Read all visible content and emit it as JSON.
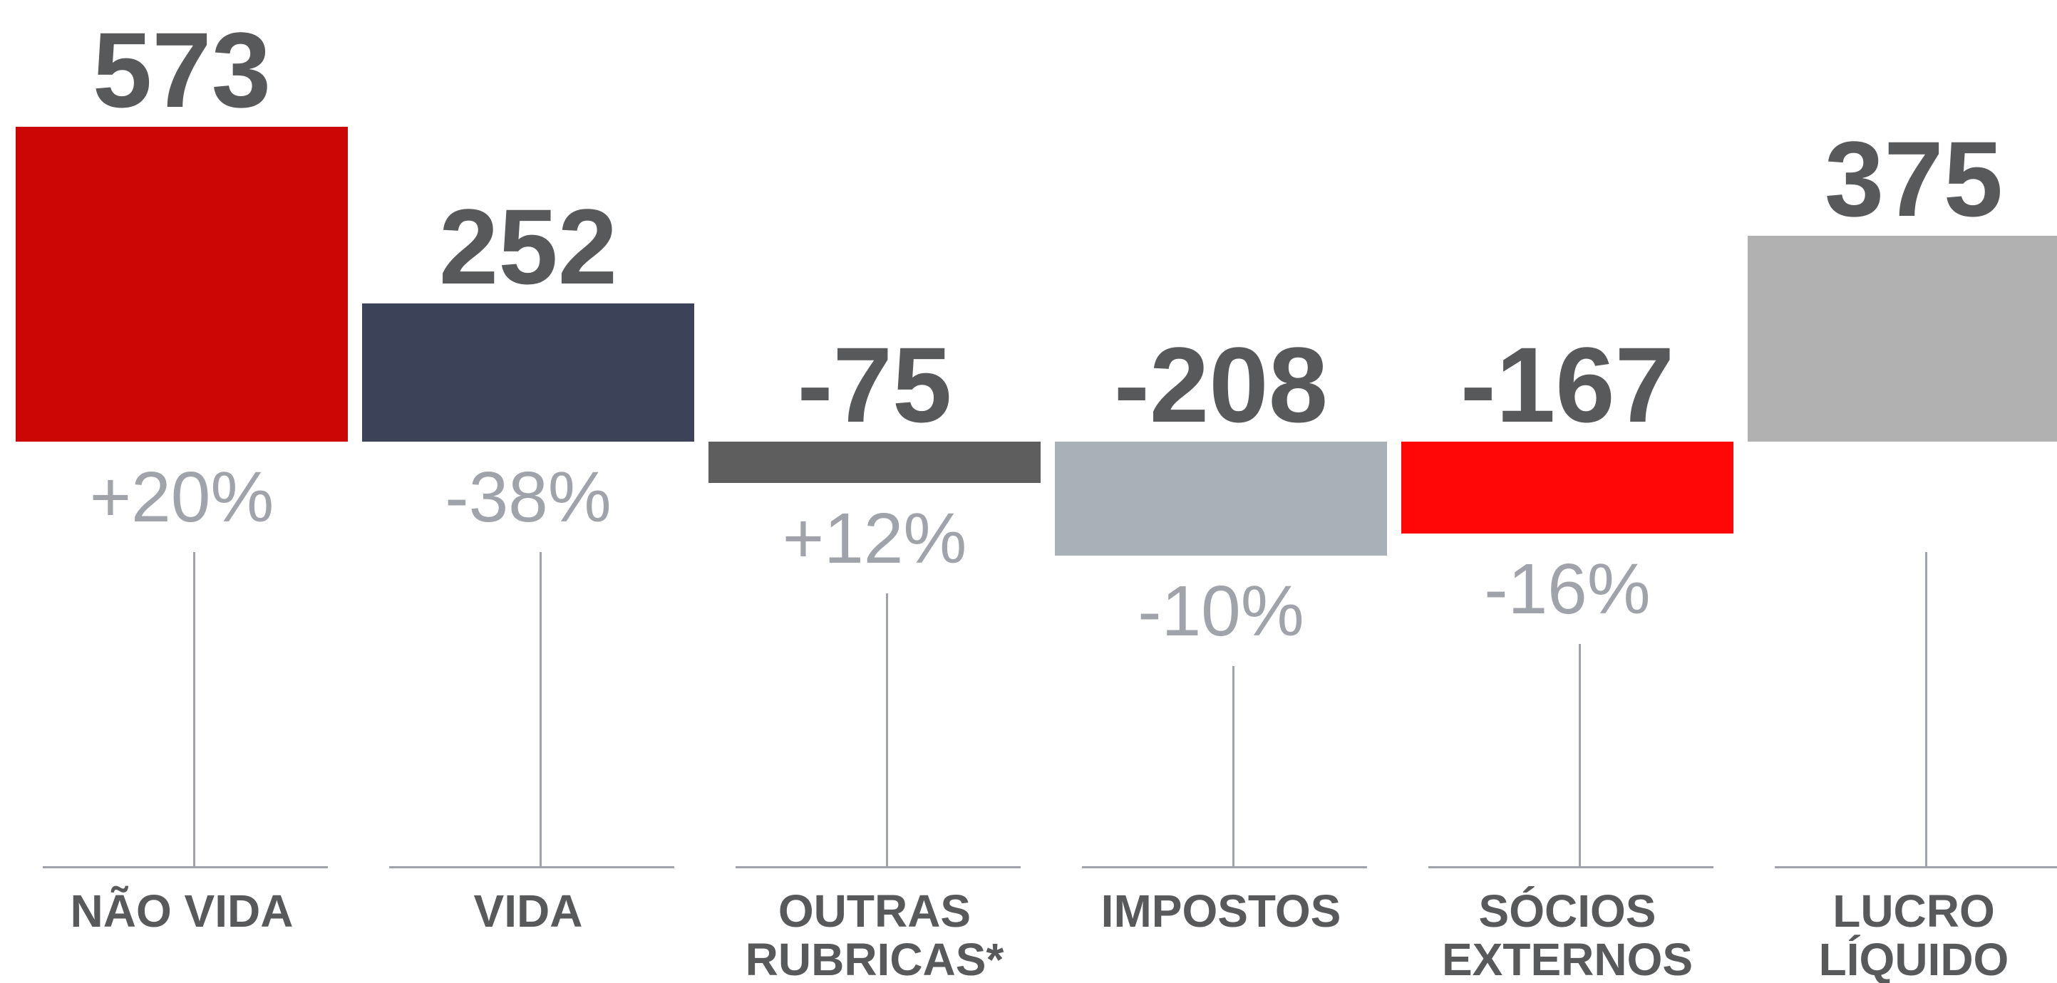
{
  "chart_data": {
    "type": "bar",
    "categories": [
      "NÃO VIDA",
      "VIDA",
      "OUTRAS\nRUBRICAS*",
      "IMPOSTOS",
      "SÓCIOS\nEXTERNOS",
      "LUCRO\nLÍQUIDO"
    ],
    "values": [
      573,
      252,
      -75,
      -208,
      -167,
      375
    ],
    "colors": [
      "#cc0605",
      "#3c4257",
      "#5e5e5e",
      "#aab0b7",
      "#ff0707",
      "#b1b1b1"
    ],
    "change_labels": [
      "+20%",
      "-38%",
      "+12%",
      "-10%",
      "-16%",
      null
    ]
  }
}
